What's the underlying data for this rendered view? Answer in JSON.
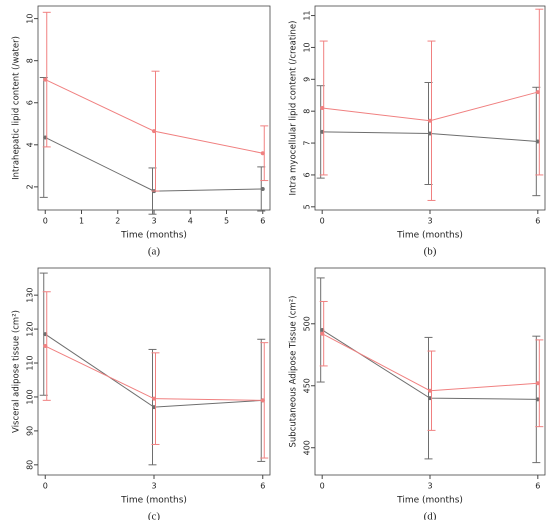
{
  "chart_data": [
    {
      "type": "line",
      "caption": "(a)",
      "x_label": "Time (months)",
      "y_label": "Intrahepatic lipid content (/water)",
      "x": [
        0,
        3,
        6
      ],
      "xlim": [
        -0.2,
        6.2
      ],
      "xticks": [
        0,
        1,
        2,
        3,
        4,
        5,
        6
      ],
      "ylim": [
        0.9,
        10.6
      ],
      "yticks": [
        2,
        4,
        6,
        8,
        10
      ],
      "series": [
        {
          "color": "#6e6e6e",
          "values": [
            4.35,
            1.8,
            1.9
          ],
          "errors": [
            2.85,
            1.1,
            1.05
          ]
        },
        {
          "color": "#f08080",
          "values": [
            7.1,
            4.65,
            3.6
          ],
          "errors": [
            3.2,
            2.85,
            1.3
          ]
        }
      ]
    },
    {
      "type": "line",
      "caption": "(b)",
      "x_label": "Time (months)",
      "y_label": "Intra myocellular lipid content (/creatine)",
      "x": [
        0,
        3,
        6
      ],
      "xlim": [
        -0.2,
        6.2
      ],
      "xticks": [
        0,
        3,
        6
      ],
      "ylim": [
        4.9,
        11.3
      ],
      "yticks": [
        5,
        6,
        7,
        8,
        9,
        10,
        11
      ],
      "series": [
        {
          "color": "#6e6e6e",
          "values": [
            7.35,
            7.3,
            7.05
          ],
          "errors": [
            1.45,
            1.6,
            1.7
          ]
        },
        {
          "color": "#f08080",
          "values": [
            8.1,
            7.7,
            8.6
          ],
          "errors": [
            2.1,
            2.5,
            2.6
          ]
        }
      ]
    },
    {
      "type": "line",
      "caption": "(c)",
      "x_label": "Time (months)",
      "y_label": "Visceral adipose tissue (cm²)",
      "x": [
        0,
        3,
        6
      ],
      "xlim": [
        -0.2,
        6.2
      ],
      "xticks": [
        0,
        3,
        6
      ],
      "ylim": [
        77,
        138
      ],
      "yticks": [
        80,
        90,
        100,
        110,
        120,
        130
      ],
      "series": [
        {
          "color": "#6e6e6e",
          "values": [
            118.5,
            97,
            99
          ],
          "errors": [
            18,
            17,
            18
          ]
        },
        {
          "color": "#f08080",
          "values": [
            115,
            99.5,
            99
          ],
          "errors": [
            16,
            13.5,
            17
          ]
        }
      ]
    },
    {
      "type": "line",
      "caption": "(d)",
      "x_label": "Time (months)",
      "y_label": "Subcutaneous Adipose Tissue (cm²)",
      "x": [
        0,
        3,
        6
      ],
      "xlim": [
        -0.2,
        6.2
      ],
      "xticks": [
        0,
        3,
        6
      ],
      "ylim": [
        378,
        545
      ],
      "yticks": [
        400,
        450,
        500
      ],
      "series": [
        {
          "color": "#6e6e6e",
          "values": [
            495,
            440,
            439
          ],
          "errors": [
            42,
            49,
            51
          ]
        },
        {
          "color": "#f08080",
          "values": [
            492,
            446,
            452
          ],
          "errors": [
            26,
            32,
            35
          ]
        }
      ]
    }
  ]
}
